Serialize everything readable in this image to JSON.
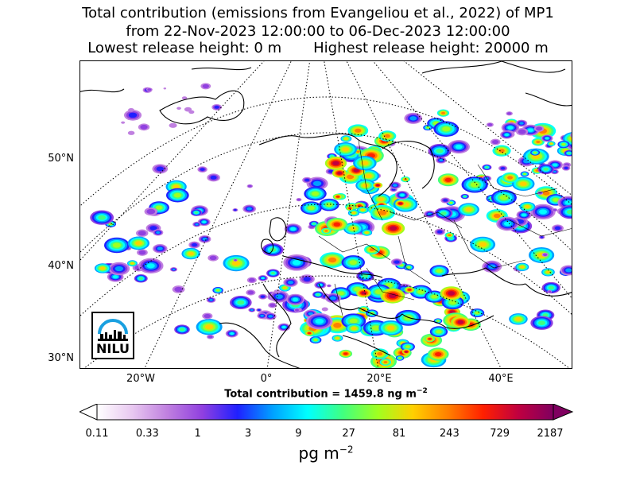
{
  "title": {
    "line1": "Total contribution (emissions from Evangeliou et al., 2022) of MP1",
    "line2": "from 22-Nov-2023 12:00:00 to 06-Dec-2023 12:00:00",
    "line3_left": "Lowest release height: 0 m",
    "line3_right": "Highest release height: 20000 m"
  },
  "map": {
    "lat_labels": [
      "50°N",
      "40°N",
      "30°N"
    ],
    "lon_labels": [
      "20°W",
      "0°",
      "20°E",
      "40°E"
    ],
    "total_prefix": "Total contribution = 1459.8 ng m",
    "total_exp": "−2"
  },
  "colorbar": {
    "ticks": [
      "0.11",
      "0.33",
      "1",
      "3",
      "9",
      "27",
      "81",
      "243",
      "729",
      "2187"
    ],
    "units_base": "pg m",
    "units_exp": "−2",
    "colors": [
      "#ffffff",
      "#e8c8f0",
      "#c080e0",
      "#9040e0",
      "#2020ff",
      "#00a0ff",
      "#00ffff",
      "#40ff80",
      "#a0ff20",
      "#ffd000",
      "#ff8000",
      "#ff2000",
      "#c00040",
      "#800060"
    ]
  },
  "logo": {
    "text": "NILU",
    "color": "#1aa0e0"
  }
}
